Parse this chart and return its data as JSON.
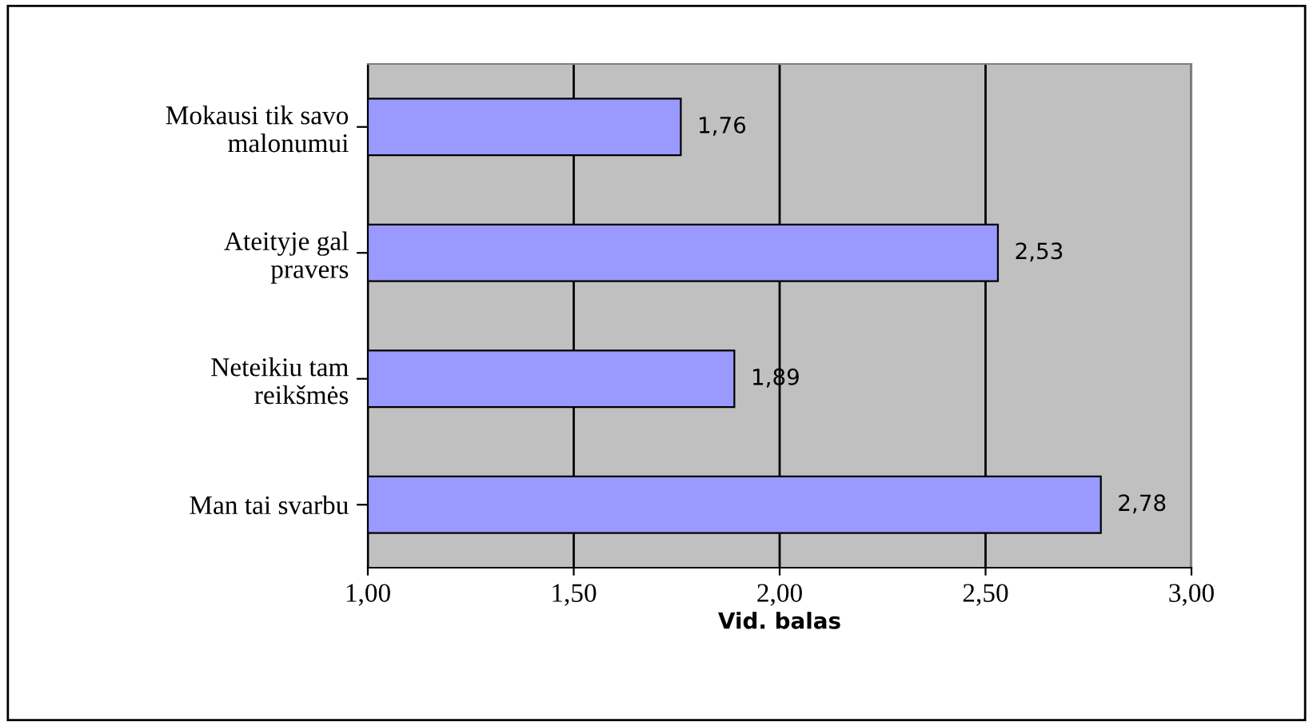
{
  "chart_data": {
    "type": "bar",
    "orientation": "horizontal",
    "categories": [
      "Mokausi tik savo\nmalonumui",
      "Ateityje gal\npravers",
      "Neteikiu tam\nreikšmės",
      "Man tai svarbu"
    ],
    "values": [
      1.76,
      2.53,
      1.89,
      2.78
    ],
    "value_labels": [
      "1,76",
      "2,53",
      "1,89",
      "2,78"
    ],
    "color": "#9999ff",
    "xlabel": "Vid. balas",
    "xlim": [
      1,
      3
    ],
    "xticks": [
      {
        "value": 1,
        "label": "1,00"
      },
      {
        "value": 1.5,
        "label": "1,50"
      },
      {
        "value": 2,
        "label": "2,00"
      },
      {
        "value": 2.5,
        "label": "2,50"
      },
      {
        "value": 3,
        "label": "3,00"
      }
    ],
    "grid": "x"
  }
}
